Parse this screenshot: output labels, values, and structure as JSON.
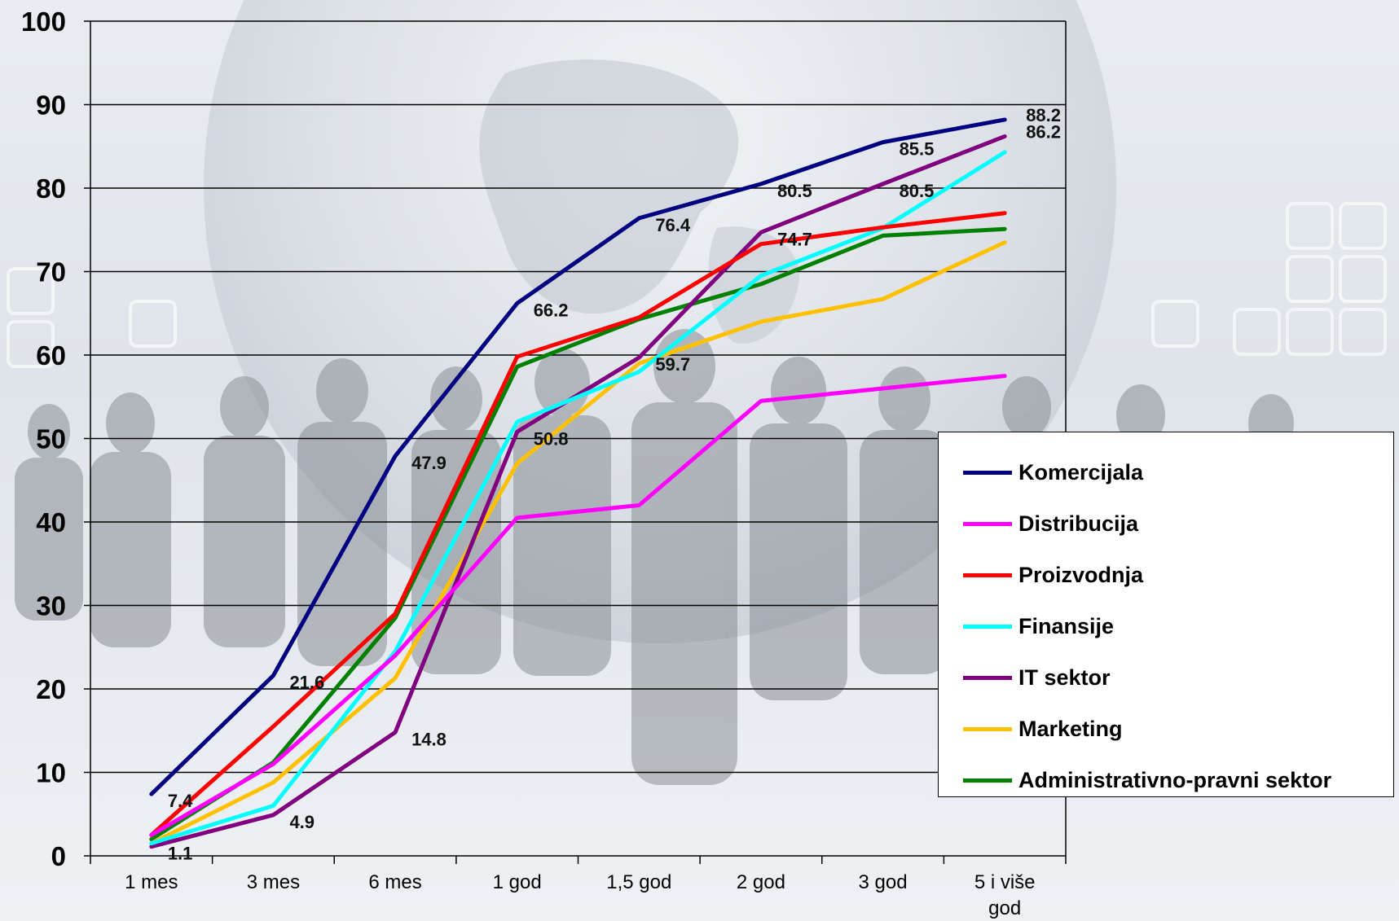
{
  "chart_data": {
    "type": "line",
    "categories": [
      "1 mes",
      "3 mes",
      "6 mes",
      "1 god",
      "1,5 god",
      "2 god",
      "3 god",
      "5 i više god"
    ],
    "ylim": [
      0,
      100
    ],
    "yticks": [
      0,
      10,
      20,
      30,
      40,
      50,
      60,
      70,
      80,
      90,
      100
    ],
    "grid": true,
    "legend_position": "right",
    "series": [
      {
        "name": "Komercijala",
        "color": "#000080",
        "values": [
          7.4,
          21.6,
          47.9,
          66.2,
          76.4,
          80.5,
          85.5,
          88.2
        ]
      },
      {
        "name": "Distribucija",
        "color": "#FF00FF",
        "values": [
          2.5,
          11,
          24,
          40.5,
          42,
          54.5,
          56,
          57.5
        ]
      },
      {
        "name": "Proizvodnja",
        "color": "#FF0000",
        "values": [
          2.5,
          15.5,
          29,
          59.8,
          64.5,
          73.3,
          75.3,
          77
        ]
      },
      {
        "name": "Finansije",
        "color": "#00FFFF",
        "values": [
          1.5,
          6,
          24.5,
          52,
          58,
          69.5,
          75.2,
          84.3
        ]
      },
      {
        "name": "IT sektor",
        "color": "#800080",
        "values": [
          1.1,
          4.9,
          14.8,
          50.8,
          59.7,
          74.7,
          80.5,
          86.2
        ]
      },
      {
        "name": "Marketing",
        "color": "#FFC000",
        "values": [
          1.5,
          8.8,
          21.3,
          47,
          59,
          64,
          66.7,
          73.5
        ]
      },
      {
        "name": "Administrativno-pravni sektor",
        "color": "#008000",
        "values": [
          2,
          11.2,
          28.5,
          58.6,
          64.3,
          68.5,
          74.3,
          75.1
        ]
      }
    ],
    "data_labels": [
      {
        "text": "7.4",
        "series": "Komercijala",
        "index": 0
      },
      {
        "text": "21.6",
        "series": "Komercijala",
        "index": 1
      },
      {
        "text": "47.9",
        "series": "Komercijala",
        "index": 2
      },
      {
        "text": "66.2",
        "series": "Komercijala",
        "index": 3
      },
      {
        "text": "76.4",
        "series": "Komercijala",
        "index": 4
      },
      {
        "text": "80.5",
        "series": "Komercijala",
        "index": 5
      },
      {
        "text": "85.5",
        "series": "Komercijala",
        "index": 6
      },
      {
        "text": "88.2",
        "series": "Komercijala",
        "index": 7
      },
      {
        "text": "1.1",
        "series": "IT sektor",
        "index": 0
      },
      {
        "text": "4.9",
        "series": "IT sektor",
        "index": 1
      },
      {
        "text": "14.8",
        "series": "IT sektor",
        "index": 2
      },
      {
        "text": "50.8",
        "series": "IT sektor",
        "index": 3
      },
      {
        "text": "59.7",
        "series": "IT sektor",
        "index": 4
      },
      {
        "text": "74.7",
        "series": "IT sektor",
        "index": 5
      },
      {
        "text": "80.5",
        "series": "IT sektor",
        "index": 6
      },
      {
        "text": "86.2",
        "series": "IT sektor",
        "index": 7
      }
    ]
  }
}
